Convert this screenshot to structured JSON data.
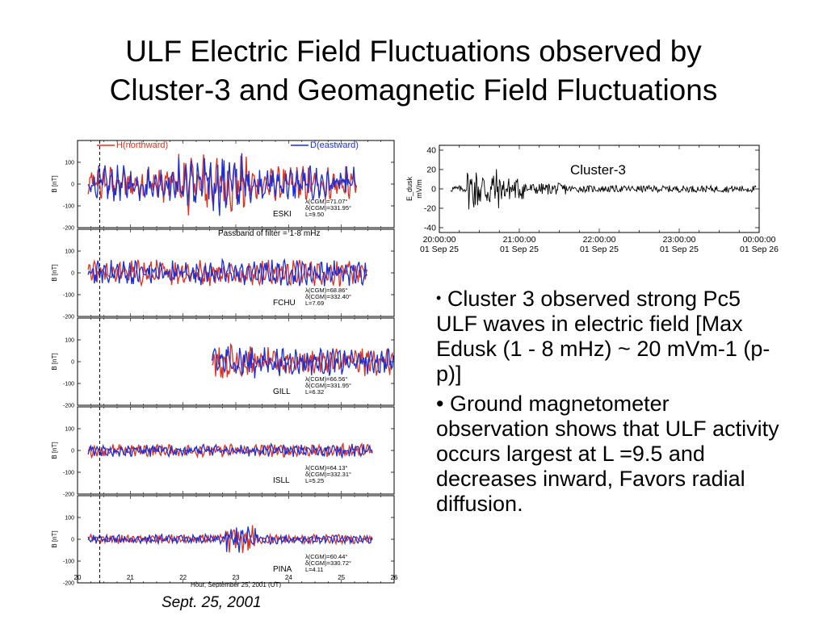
{
  "slide": {
    "title_line1": "ULF Electric Field Fluctuations observed by",
    "title_line2": "Cluster-3 and Geomagnetic Field Fluctuations",
    "caption": "Sept. 25, 2001",
    "bullets": [
      {
        "marker": "•",
        "text": "Cluster 3 observed strong Pc5 ULF waves in electric field [Max Edusk (1 - 8 mHz) ~ 20 mVm-1 (p-p)]"
      },
      {
        "marker": "•",
        "text": "Ground magnetometer observation shows that ULF activity occurs largest at L =9.5 and decreases inward, Favors radial diffusion."
      }
    ]
  },
  "chart_data": [
    {
      "type": "line",
      "legend": [
        "H(northward)",
        "D(eastward)"
      ],
      "colors": {
        "H": "#e0301e",
        "D": "#1a2fd6"
      },
      "annotation": "Passband of filter = 1-8 mHz",
      "xlabel": "Hour, September 25, 2001 (UT)",
      "x_ticks": [
        "20",
        "21",
        "22",
        "23",
        "24",
        "25",
        "26"
      ],
      "xlim": [
        20,
        26
      ],
      "ylabel": "B [nT]",
      "y_ticks": [
        "100",
        "0",
        "-100",
        "-200"
      ],
      "ylim": [
        -200,
        200
      ],
      "event_marker_hour": 20.42,
      "grid": false,
      "panels": [
        {
          "station": "ESKI",
          "lambda": "λ(CGM)=71.07°",
          "delta": "δ(CGM)=331.95°",
          "L": "L=9.50",
          "amp": 70,
          "start": 20.2,
          "end": 25.3
        },
        {
          "station": "FCHU",
          "lambda": "λ(CGM)=68.86°",
          "delta": "δ(CGM)=332.40°",
          "L": "L=7.69",
          "amp": 50,
          "start": 20.2,
          "end": 25.5
        },
        {
          "station": "GILL",
          "lambda": "λ(CGM)=66.56°",
          "delta": "δ(CGM)=331.95°",
          "L": "L=6.32",
          "amp": 55,
          "start": 22.55,
          "end": 26.0
        },
        {
          "station": "ISLL",
          "lambda": "λ(CGM)=64.13°",
          "delta": "δ(CGM)=332.31°",
          "L": "L=5.25",
          "amp": 25,
          "start": 20.2,
          "end": 25.6
        },
        {
          "station": "PINA",
          "lambda": "λ(CGM)=60.44°",
          "delta": "δ(CGM)=330.72°",
          "L": "L=4.11",
          "amp": 18,
          "start": 20.2,
          "end": 25.6
        }
      ]
    },
    {
      "type": "line",
      "series_name": "Cluster-3",
      "ylabel": "E_dusk mV/m",
      "y_ticks": [
        "40",
        "20",
        "0",
        "-20",
        "-40"
      ],
      "ylim": [
        -45,
        45
      ],
      "x_ticks": [
        {
          "time": "20:00:00",
          "date": "01 Sep 25"
        },
        {
          "time": "21:00:00",
          "date": "01 Sep 25"
        },
        {
          "time": "22:00:00",
          "date": "01 Sep 25"
        },
        {
          "time": "23:00:00",
          "date": "01 Sep 25"
        },
        {
          "time": "00:00:00",
          "date": "01 Sep 26"
        }
      ],
      "xlim": [
        20,
        24
      ],
      "grid": false
    }
  ]
}
